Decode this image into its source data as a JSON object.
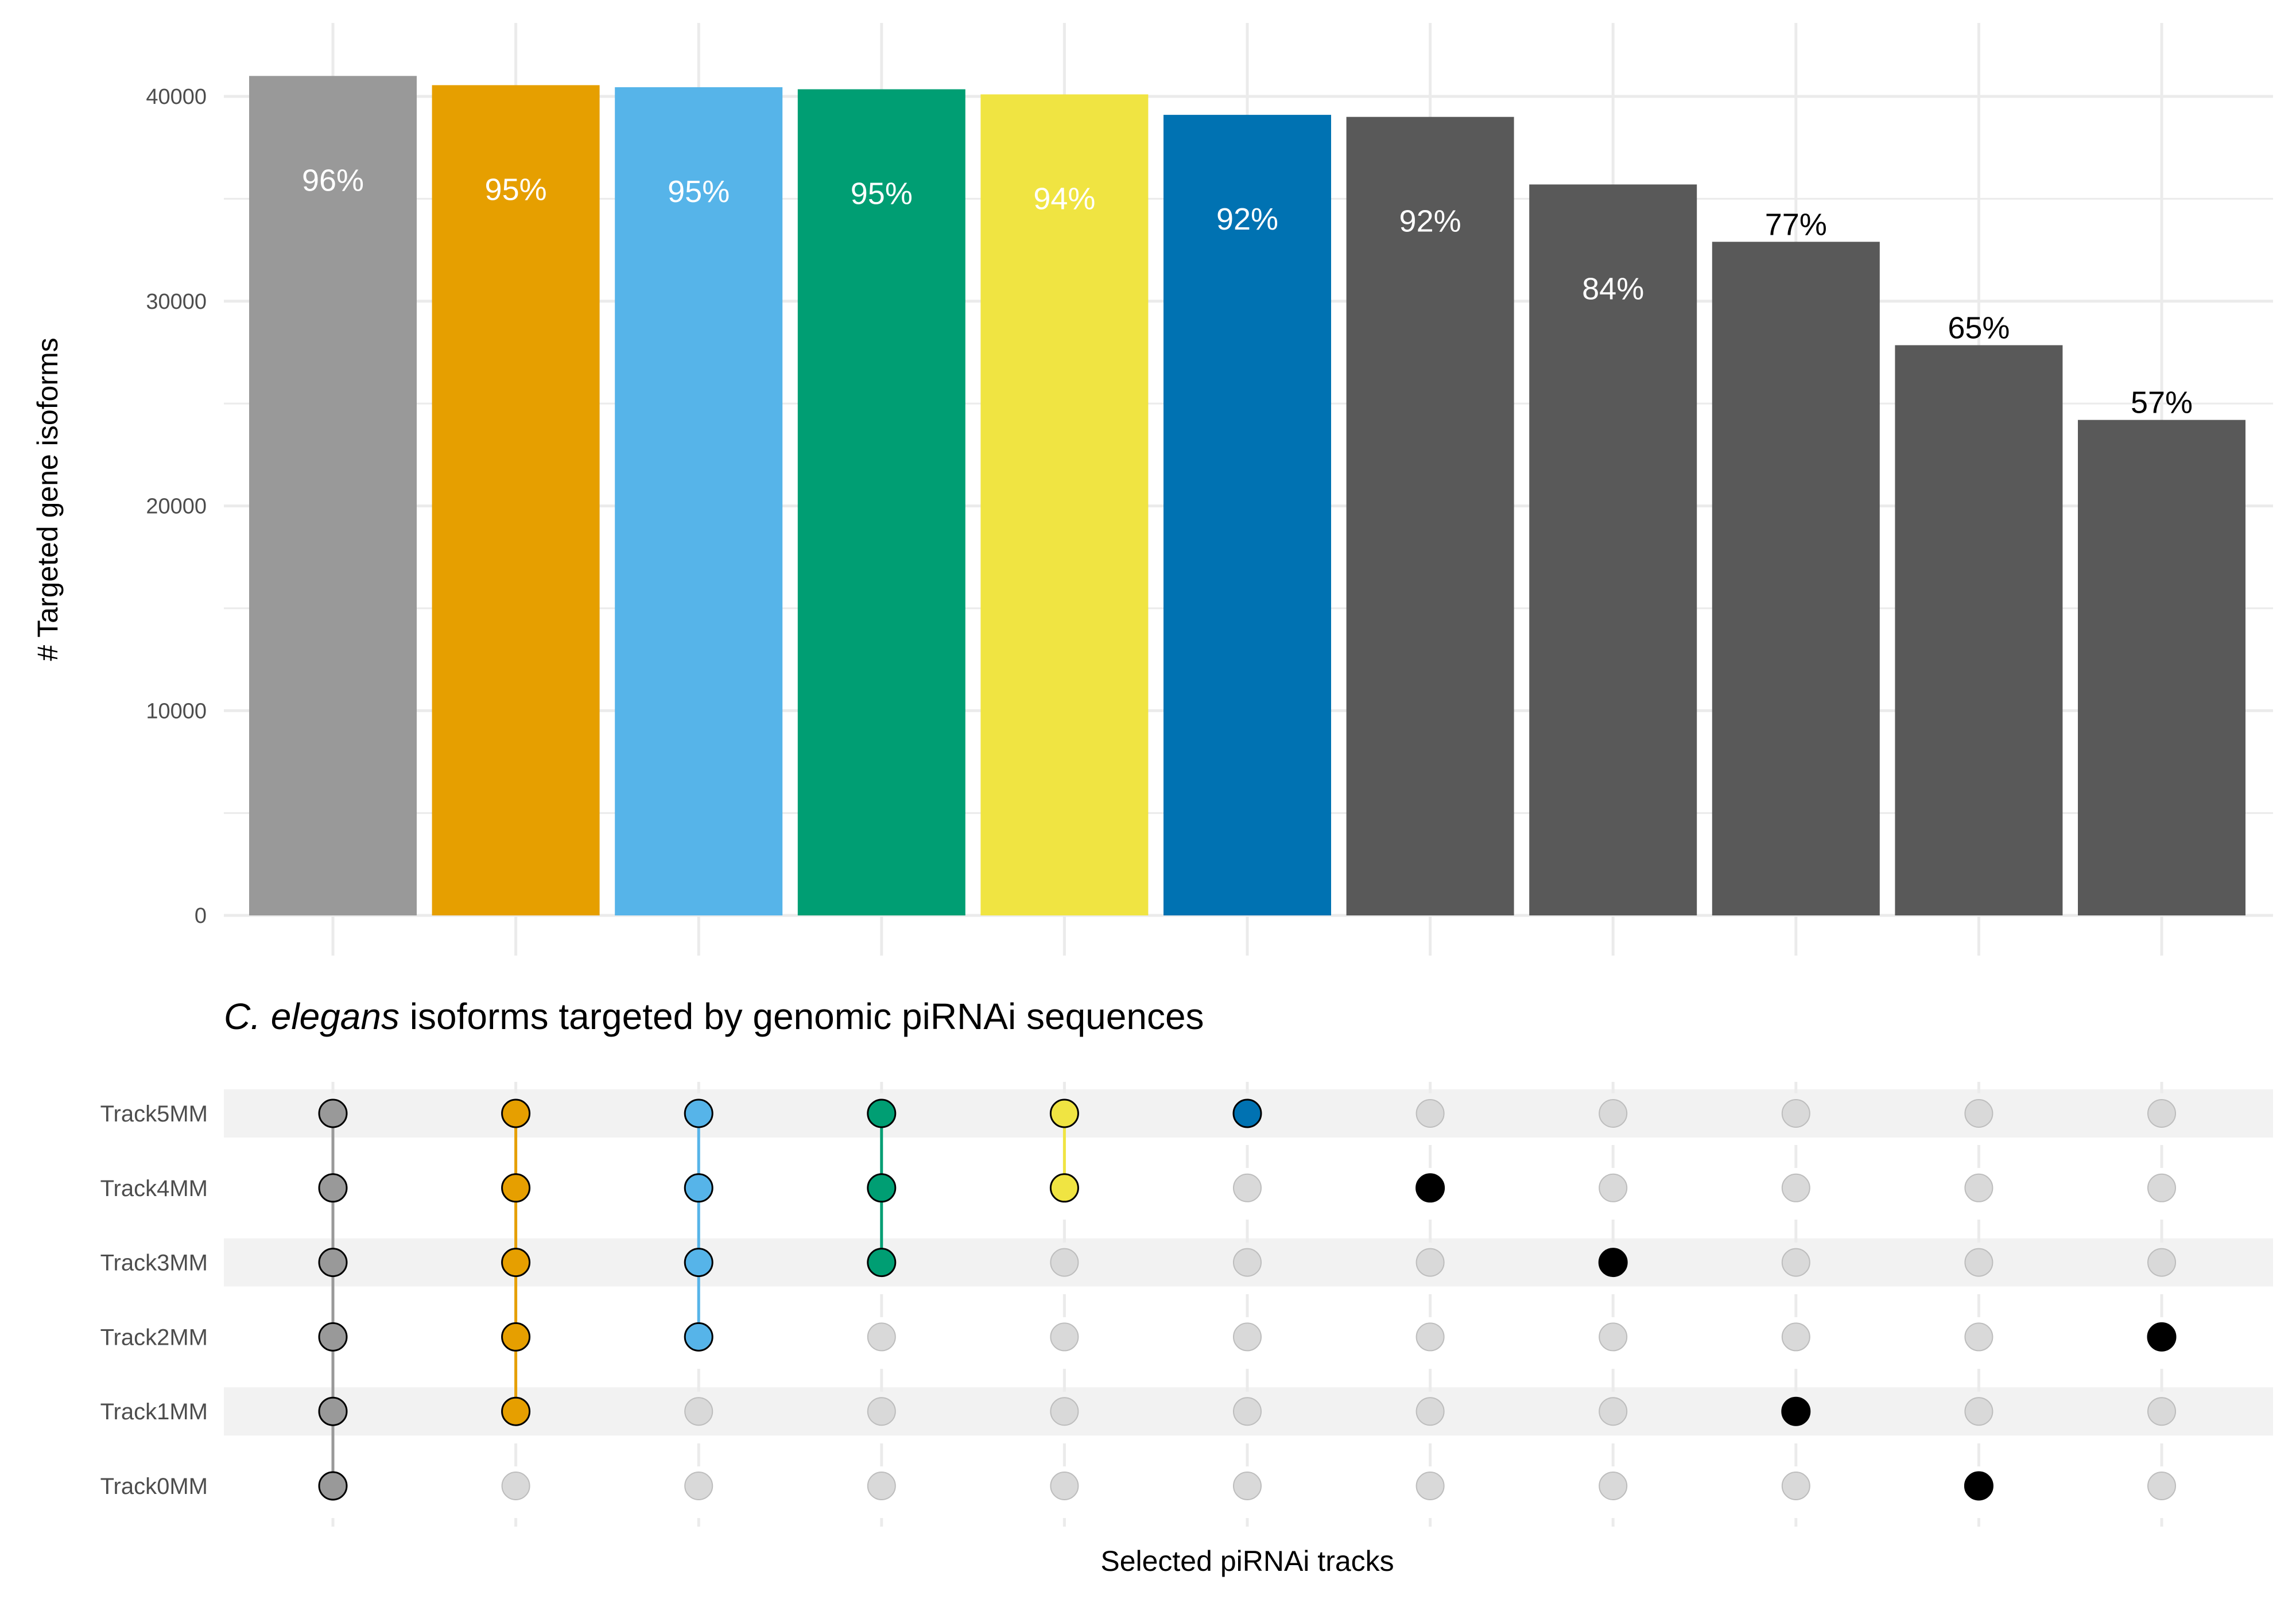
{
  "chart_data": {
    "type": "bar",
    "subtitle_italic": "C. elegans",
    "subtitle_rest": " isoforms targeted by genomic piRNAi sequences",
    "ylabel": "# Targeted gene isoforms",
    "xlabel": "Selected piRNAi tracks",
    "ylim": [
      0,
      41000
    ],
    "yticks": [
      0,
      10000,
      20000,
      30000,
      40000
    ],
    "ytick_labels": [
      "0",
      "10000",
      "20000",
      "30000",
      "40000"
    ],
    "grid": true,
    "values": [
      41000,
      40550,
      40450,
      40350,
      40100,
      39100,
      39000,
      35700,
      32900,
      27850,
      24200
    ],
    "labels": [
      "96%",
      "95%",
      "95%",
      "95%",
      "94%",
      "92%",
      "92%",
      "84%",
      "77%",
      "65%",
      "57%"
    ],
    "bar_colors": [
      "#999999",
      "#E69F00",
      "#56B4E9",
      "#009E73",
      "#F0E442",
      "#0072B2",
      "#595959",
      "#595959",
      "#595959",
      "#595959",
      "#595959"
    ],
    "label_colors": [
      "#ffffff",
      "#ffffff",
      "#ffffff",
      "#ffffff",
      "#ffffff",
      "#ffffff",
      "#ffffff",
      "#ffffff",
      "#000000",
      "#000000",
      "#000000"
    ],
    "label_inside": [
      true,
      true,
      true,
      true,
      true,
      true,
      true,
      true,
      false,
      false,
      false
    ],
    "matrix_rows": [
      "Track5MM",
      "Track4MM",
      "Track3MM",
      "Track2MM",
      "Track1MM",
      "Track0MM"
    ],
    "matrix_sets": [
      [
        "Track5MM",
        "Track4MM",
        "Track3MM",
        "Track2MM",
        "Track1MM",
        "Track0MM"
      ],
      [
        "Track5MM",
        "Track4MM",
        "Track3MM",
        "Track2MM",
        "Track1MM"
      ],
      [
        "Track5MM",
        "Track4MM",
        "Track3MM",
        "Track2MM"
      ],
      [
        "Track5MM",
        "Track4MM",
        "Track3MM"
      ],
      [
        "Track5MM",
        "Track4MM"
      ],
      [
        "Track5MM"
      ],
      [
        "Track4MM"
      ],
      [
        "Track3MM"
      ],
      [
        "Track1MM"
      ],
      [
        "Track0MM"
      ],
      [
        "Track2MM"
      ]
    ],
    "dot_colors": [
      "#999999",
      "#E69F00",
      "#56B4E9",
      "#009E73",
      "#F0E442",
      "#0072B2",
      "#000000",
      "#000000",
      "#000000",
      "#000000",
      "#000000"
    ],
    "inactive_dot_color": "#d9d9d9",
    "row_band_color": "#f2f2f2",
    "grid_color": "#ebebeb"
  }
}
